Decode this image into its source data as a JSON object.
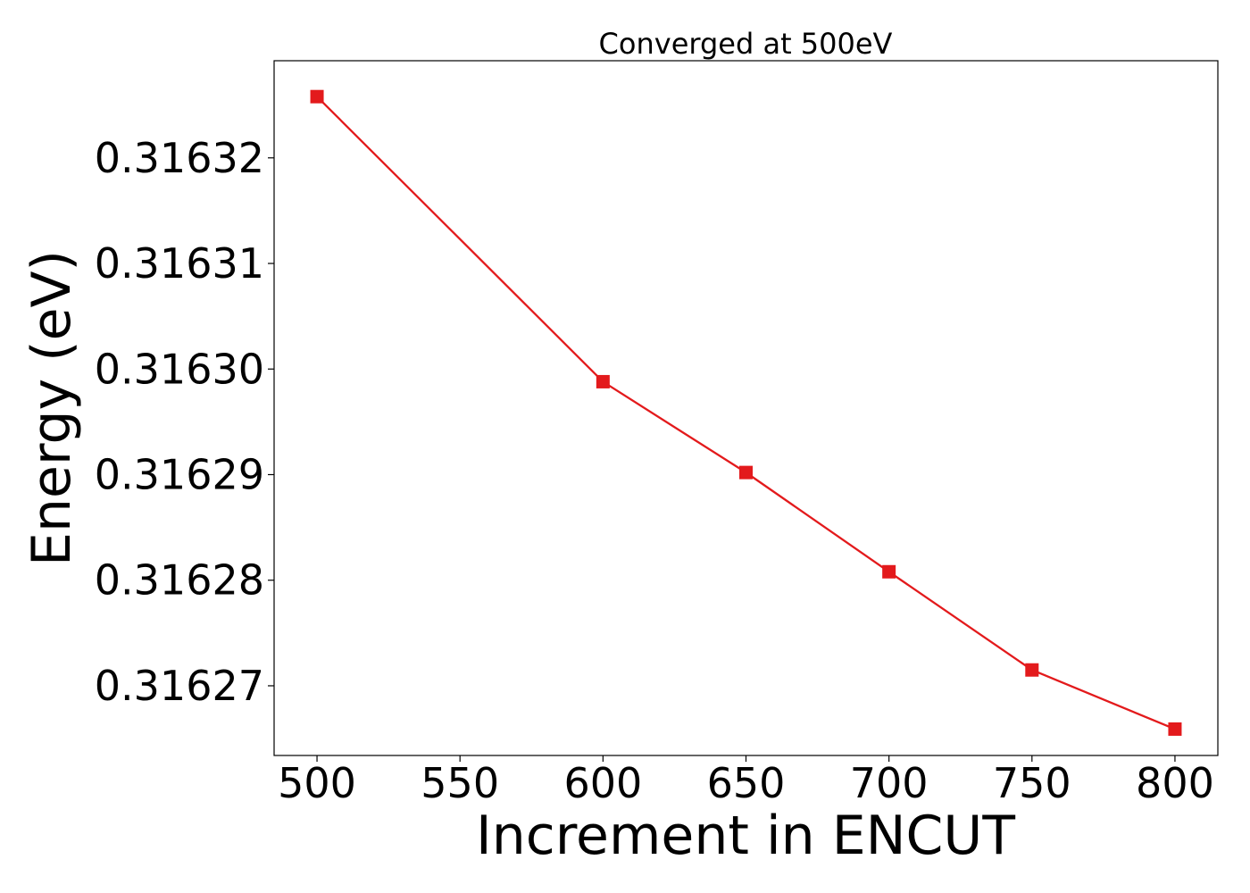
{
  "chart_data": {
    "type": "line",
    "title": "Converged at 500eV",
    "xlabel": "Increment in ENCUT",
    "ylabel": "Energy (eV)",
    "x": [
      500,
      600,
      650,
      700,
      750,
      800
    ],
    "x_ticks": [
      500,
      550,
      600,
      650,
      700,
      750,
      800
    ],
    "x_tick_labels": [
      "500",
      "550",
      "600",
      "650",
      "700",
      "750",
      "800"
    ],
    "xlim": [
      485,
      815
    ],
    "y_ticks": [
      0.31627,
      0.31628,
      0.31629,
      0.3163,
      0.31631,
      0.31632
    ],
    "y_tick_labels": [
      "0.31627",
      "0.31628",
      "0.31629",
      "0.31630",
      "0.31631",
      "0.31632"
    ],
    "ylim": [
      0.3162634,
      0.3163292
    ],
    "grid": false,
    "series": [
      {
        "values": [
          0.3163258,
          0.3162988,
          0.3162902,
          0.3162808,
          0.3162715,
          0.3162659
        ],
        "color": "#e31a1c",
        "marker": "square"
      }
    ]
  }
}
